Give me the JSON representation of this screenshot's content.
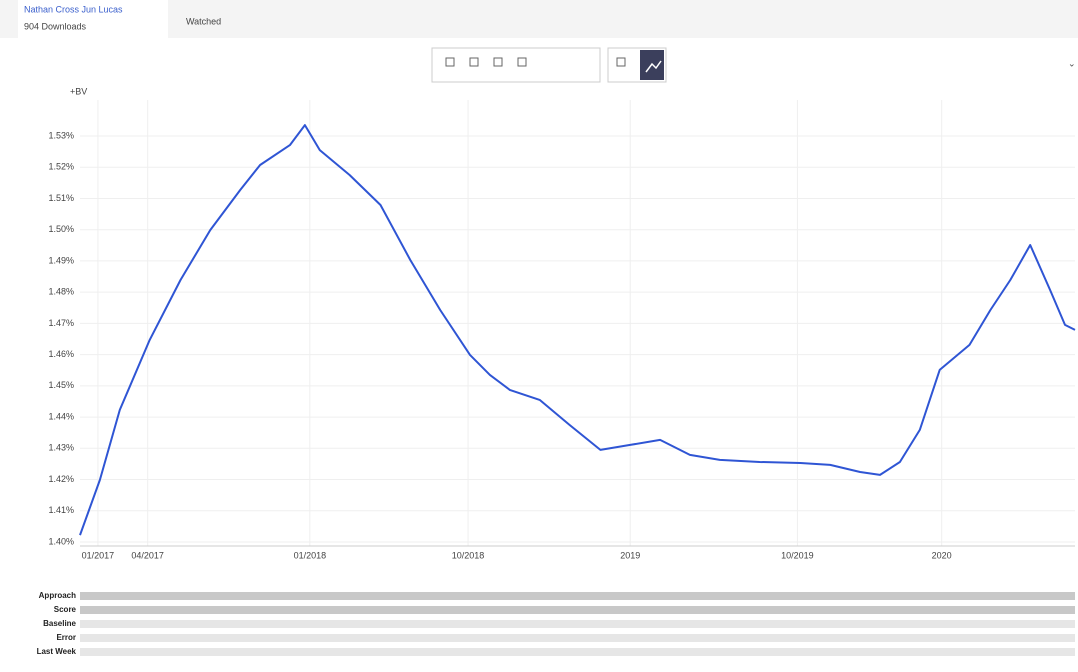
{
  "tabs": [
    "Nathan Cross Jun Lucas",
    "904 Downloads",
    "Watched"
  ],
  "bottom_rows": [
    "Approach",
    "Score",
    "Baseline",
    "Error",
    "Last Week"
  ],
  "chart_data": {
    "type": "line",
    "y_label": "+BV",
    "color": "#2f55d4",
    "x": [
      0,
      2.0,
      4.0,
      7.0,
      10.1,
      13.1,
      16.1,
      18.1,
      21.1,
      22.6,
      24.1,
      27.1,
      30.2,
      33.2,
      36.2,
      39.2,
      41.2,
      43.2,
      46.2,
      49.2,
      52.3,
      55.3,
      58.3,
      61.3,
      64.3,
      68.3,
      72.4,
      75.4,
      78.4,
      80.4,
      82.4,
      84.4,
      86.4,
      89.4,
      91.5,
      93.5,
      95.5,
      97.5,
      99.0,
      100
    ],
    "values": [
      1.4022,
      1.4199,
      1.4423,
      1.4647,
      1.4839,
      1.4999,
      1.5127,
      1.5207,
      1.5271,
      1.5335,
      1.5255,
      1.5175,
      1.5079,
      1.4903,
      1.4743,
      1.4599,
      1.4535,
      1.4487,
      1.4455,
      1.4375,
      1.4295,
      1.4311,
      1.4327,
      1.4279,
      1.4263,
      1.4256,
      1.4253,
      1.4247,
      1.4224,
      1.4215,
      1.4256,
      1.4359,
      1.4551,
      1.4631,
      1.4743,
      1.4839,
      1.4951,
      1.4807,
      1.4695,
      1.4679
    ],
    "xlim": [
      0,
      100
    ],
    "xticks": [
      {
        "value": 1.8,
        "label": "01/2017"
      },
      {
        "value": 6.8,
        "label": "04/2017"
      },
      {
        "value": 23.1,
        "label": "01/2018"
      },
      {
        "value": 39.0,
        "label": "10/2018"
      },
      {
        "value": 55.3,
        "label": "2019"
      },
      {
        "value": 72.1,
        "label": "10/2019"
      },
      {
        "value": 86.6,
        "label": "2020"
      }
    ],
    "ylim": [
      1.4,
      1.53
    ],
    "yticks": [
      {
        "value": 1.4,
        "label": "1.40%"
      },
      {
        "value": 1.41,
        "label": "1.41%"
      },
      {
        "value": 1.42,
        "label": "1.42%"
      },
      {
        "value": 1.43,
        "label": "1.43%"
      },
      {
        "value": 1.44,
        "label": "1.44%"
      },
      {
        "value": 1.45,
        "label": "1.45%"
      },
      {
        "value": 1.46,
        "label": "1.46%"
      },
      {
        "value": 1.47,
        "label": "1.47%"
      },
      {
        "value": 1.48,
        "label": "1.48%"
      },
      {
        "value": 1.49,
        "label": "1.49%"
      },
      {
        "value": 1.5,
        "label": "1.50%"
      },
      {
        "value": 1.51,
        "label": "1.51%"
      },
      {
        "value": 1.52,
        "label": "1.52%"
      },
      {
        "value": 1.53,
        "label": "1.53%"
      }
    ],
    "grid": true
  }
}
